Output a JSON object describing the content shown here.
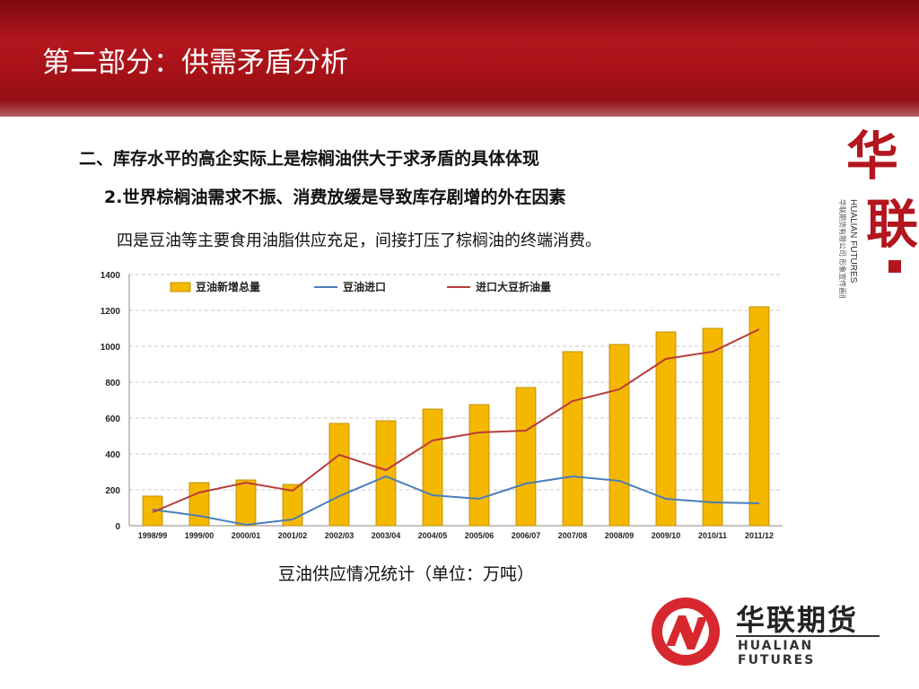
{
  "slide": {
    "title": "第二部分：供需矛盾分析",
    "heading1": "二、库存水平的高企实际上是棕榈油供大于求矛盾的具体体现",
    "heading2": "2.世界棕榈油需求不振、消费放缓是导致库存剧增的外在因素",
    "body": "四是豆油等主要食用油脂供应充足，间接打压了棕榈油的终端消费。",
    "caption": "豆油供应情况统计（单位：万吨）"
  },
  "brand": {
    "vertical_cn": "华联",
    "vertical_sub": "华联期货有限公司 形象宣传画册",
    "vertical_en": "HUALIAN FUTURES",
    "logo_cn": "华联期货",
    "logo_en": "HUALIAN FUTURES"
  },
  "colors": {
    "banner": "#a81218",
    "bar": "#f5b800",
    "bar_edge": "#c08f00",
    "series_blue": "#4a7ebb",
    "series_red": "#b83c3c",
    "logo_red": "#d7282f"
  },
  "chart_data": {
    "type": "bar",
    "categories": [
      "1998/99",
      "1999/00",
      "2000/01",
      "2001/02",
      "2002/03",
      "2003/04",
      "2004/05",
      "2005/06",
      "2006/07",
      "2007/08",
      "2008/09",
      "2009/10",
      "2010/11",
      "2011/12"
    ],
    "series": [
      {
        "name": "豆油新增总量",
        "type": "bar",
        "values": [
          165,
          240,
          255,
          230,
          570,
          585,
          650,
          675,
          770,
          970,
          1010,
          1080,
          1100,
          1220
        ]
      },
      {
        "name": "豆油进口",
        "type": "line",
        "values": [
          90,
          55,
          5,
          35,
          165,
          275,
          170,
          150,
          235,
          275,
          250,
          150,
          130,
          125
        ]
      },
      {
        "name": "进口大豆折油量",
        "type": "line",
        "values": [
          75,
          185,
          240,
          195,
          395,
          310,
          475,
          520,
          530,
          695,
          760,
          930,
          970,
          1095
        ]
      }
    ],
    "ylim": [
      0,
      1400
    ],
    "yticks": [
      0,
      200,
      400,
      600,
      800,
      1000,
      1200,
      1400
    ],
    "grid": true,
    "legend_position": "top"
  }
}
